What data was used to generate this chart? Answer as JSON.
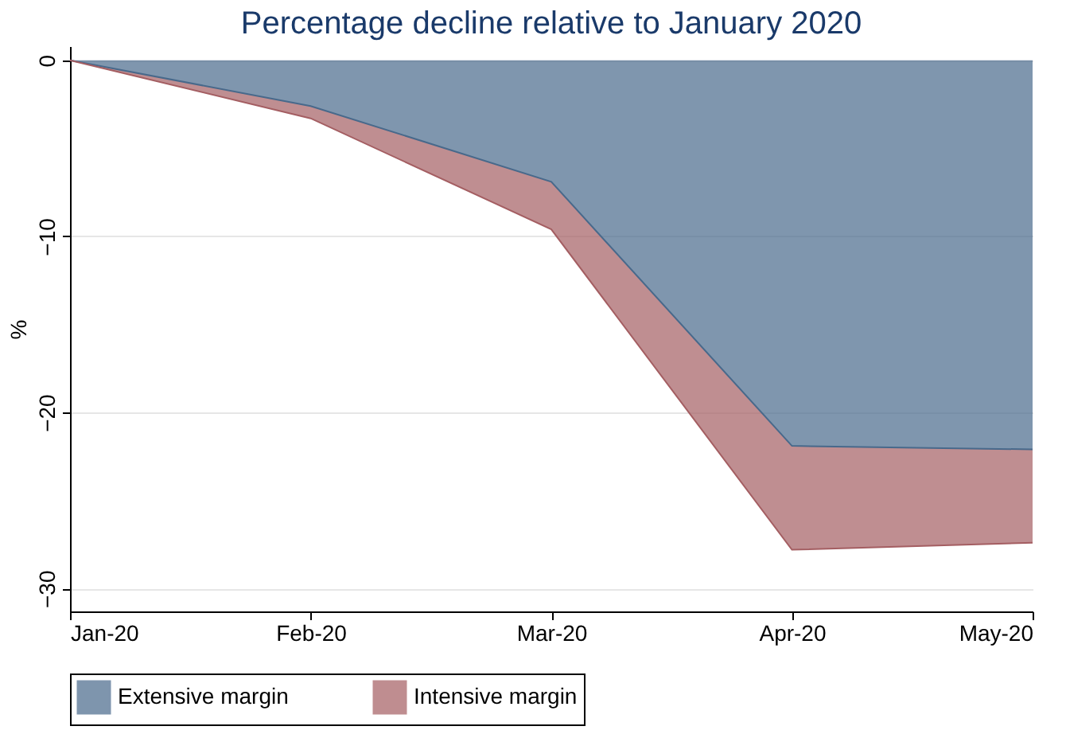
{
  "chart_data": {
    "type": "area",
    "stacked": true,
    "title": "Percentage decline relative to January 2020",
    "ylabel": "%",
    "categories": [
      "Jan-20",
      "Feb-20",
      "Mar-20",
      "Apr-20",
      "May-20"
    ],
    "series": [
      {
        "name": "Extensive margin",
        "color": "#48698b",
        "values": [
          0,
          -2.6,
          -6.9,
          -21.9,
          -22.1
        ]
      },
      {
        "name": "Intensive margin",
        "color": "#a45e62",
        "values": [
          0,
          -0.7,
          -2.7,
          -5.9,
          -5.3
        ]
      }
    ],
    "ylim": [
      -31.3,
      0.8
    ],
    "yticks": [
      -30,
      -20,
      -10,
      0
    ],
    "grid": "y",
    "legend": "bottom"
  }
}
